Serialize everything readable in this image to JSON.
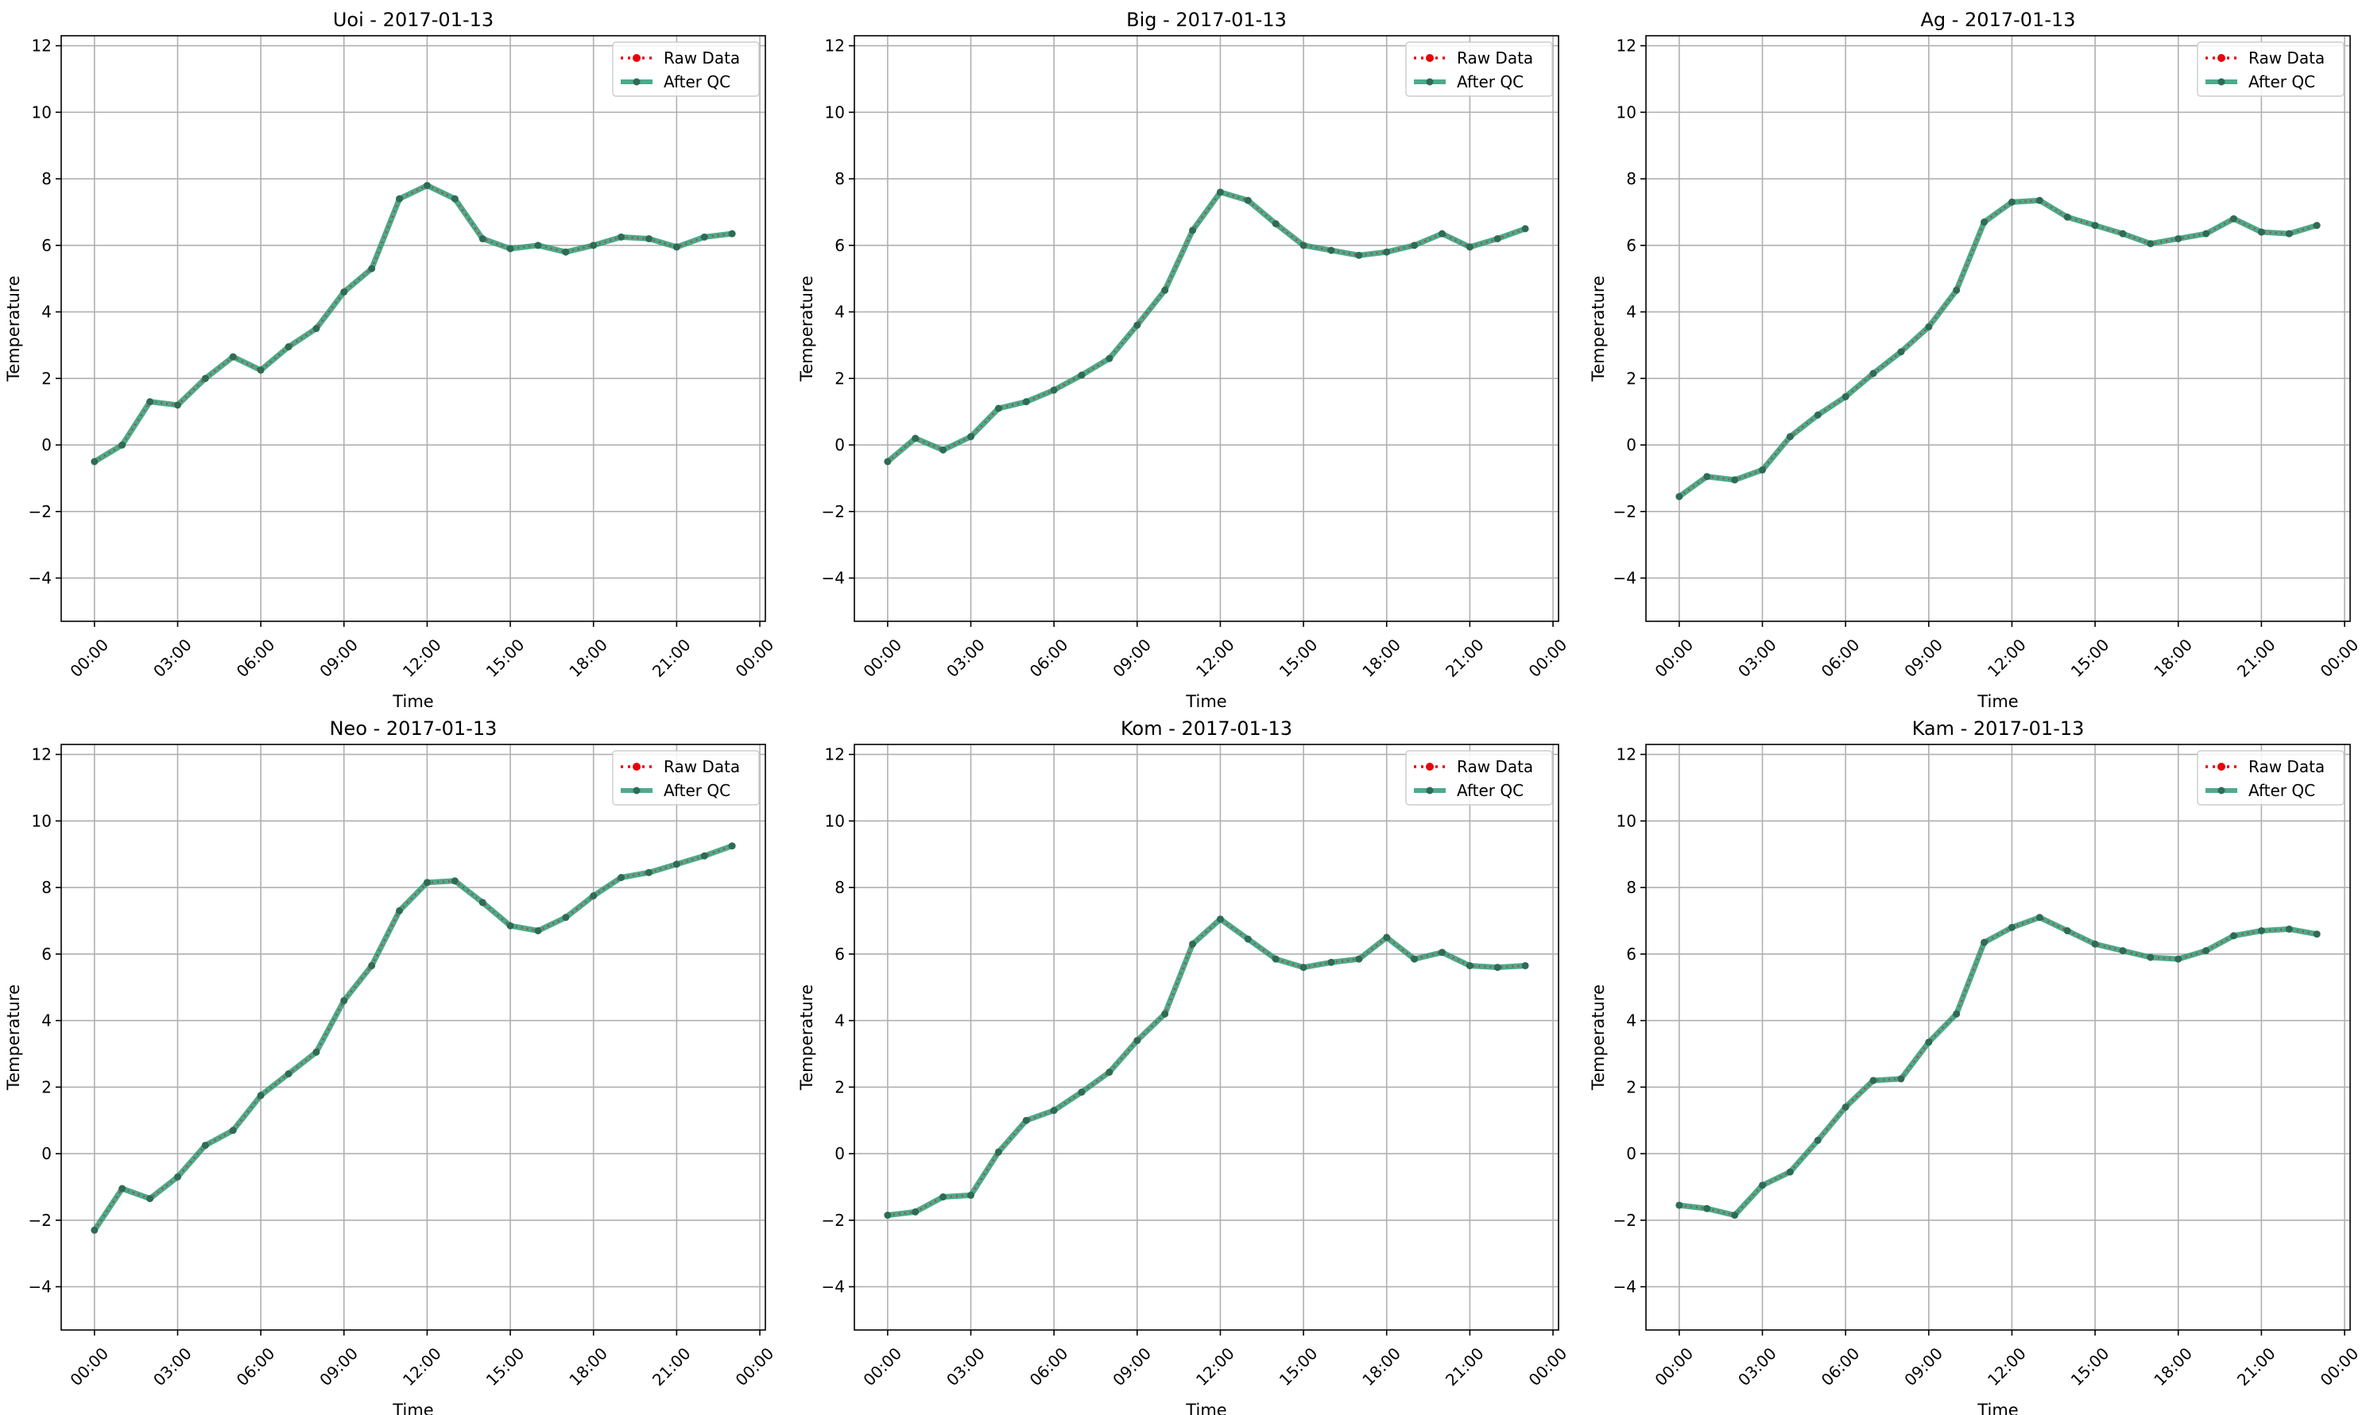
{
  "figure": {
    "background": "#ffffff"
  },
  "style": {
    "raw_color": "#e8000b",
    "qc_color": "#2e9b76",
    "qc_marker_color": "#2f6b55",
    "grid_color": "#b0b0b0"
  },
  "chart_data": [
    {
      "type": "line",
      "title": "Uoi - 2017-01-13",
      "xlabel": "Time",
      "ylabel": "Temperature",
      "x_ticks": [
        "00:00",
        "03:00",
        "06:00",
        "09:00",
        "12:00",
        "15:00",
        "18:00",
        "21:00",
        "00:00"
      ],
      "x_tick_hours": [
        0,
        3,
        6,
        9,
        12,
        15,
        18,
        21,
        24
      ],
      "y_ticks": [
        -4,
        -2,
        0,
        2,
        4,
        6,
        8,
        10,
        12
      ],
      "xlim": [
        -1.2,
        24.2
      ],
      "ylim": [
        -5.3,
        12.3
      ],
      "grid": true,
      "legend_position": "top-right",
      "x_hours": [
        0,
        1,
        2,
        3,
        4,
        5,
        6,
        7,
        8,
        9,
        10,
        11,
        12,
        13,
        14,
        15,
        16,
        17,
        18,
        19,
        20,
        21,
        22,
        23
      ],
      "series": [
        {
          "name": "Raw Data",
          "style": "dotted",
          "values": [
            -0.5,
            0.0,
            1.3,
            1.2,
            2.0,
            2.65,
            2.25,
            2.95,
            3.5,
            4.6,
            5.3,
            7.4,
            7.8,
            7.4,
            6.2,
            5.9,
            6.0,
            5.8,
            6.0,
            6.25,
            6.2,
            5.95,
            6.25,
            6.35
          ]
        },
        {
          "name": "After QC",
          "style": "solid",
          "values": [
            -0.5,
            0.0,
            1.3,
            1.2,
            2.0,
            2.65,
            2.25,
            2.95,
            3.5,
            4.6,
            5.3,
            7.4,
            7.8,
            7.4,
            6.2,
            5.9,
            6.0,
            5.8,
            6.0,
            6.25,
            6.2,
            5.95,
            6.25,
            6.35
          ]
        }
      ]
    },
    {
      "type": "line",
      "title": "Big - 2017-01-13",
      "xlabel": "Time",
      "ylabel": "Temperature",
      "x_ticks": [
        "00:00",
        "03:00",
        "06:00",
        "09:00",
        "12:00",
        "15:00",
        "18:00",
        "21:00",
        "00:00"
      ],
      "x_tick_hours": [
        0,
        3,
        6,
        9,
        12,
        15,
        18,
        21,
        24
      ],
      "y_ticks": [
        -4,
        -2,
        0,
        2,
        4,
        6,
        8,
        10,
        12
      ],
      "xlim": [
        -1.2,
        24.2
      ],
      "ylim": [
        -5.3,
        12.3
      ],
      "grid": true,
      "legend_position": "top-right",
      "x_hours": [
        0,
        1,
        2,
        3,
        4,
        5,
        6,
        7,
        8,
        9,
        10,
        11,
        12,
        13,
        14,
        15,
        16,
        17,
        18,
        19,
        20,
        21,
        22,
        23
      ],
      "series": [
        {
          "name": "Raw Data",
          "style": "dotted",
          "values": [
            -0.5,
            0.2,
            -0.15,
            0.25,
            1.1,
            1.3,
            1.65,
            2.1,
            2.6,
            3.6,
            4.65,
            6.45,
            7.6,
            7.35,
            6.65,
            6.0,
            5.85,
            5.7,
            5.8,
            6.0,
            6.35,
            5.95,
            6.2,
            6.5
          ]
        },
        {
          "name": "After QC",
          "style": "solid",
          "values": [
            -0.5,
            0.2,
            -0.15,
            0.25,
            1.1,
            1.3,
            1.65,
            2.1,
            2.6,
            3.6,
            4.65,
            6.45,
            7.6,
            7.35,
            6.65,
            6.0,
            5.85,
            5.7,
            5.8,
            6.0,
            6.35,
            5.95,
            6.2,
            6.5
          ]
        }
      ]
    },
    {
      "type": "line",
      "title": "Ag - 2017-01-13",
      "xlabel": "Time",
      "ylabel": "Temperature",
      "x_ticks": [
        "00:00",
        "03:00",
        "06:00",
        "09:00",
        "12:00",
        "15:00",
        "18:00",
        "21:00",
        "00:00"
      ],
      "x_tick_hours": [
        0,
        3,
        6,
        9,
        12,
        15,
        18,
        21,
        24
      ],
      "y_ticks": [
        -4,
        -2,
        0,
        2,
        4,
        6,
        8,
        10,
        12
      ],
      "xlim": [
        -1.2,
        24.2
      ],
      "ylim": [
        -5.3,
        12.3
      ],
      "grid": true,
      "legend_position": "top-right",
      "x_hours": [
        0,
        1,
        2,
        3,
        4,
        5,
        6,
        7,
        8,
        9,
        10,
        11,
        12,
        13,
        14,
        15,
        16,
        17,
        18,
        19,
        20,
        21,
        22,
        23
      ],
      "series": [
        {
          "name": "Raw Data",
          "style": "dotted",
          "values": [
            -1.55,
            -0.95,
            -1.05,
            -0.75,
            0.25,
            0.9,
            1.45,
            2.15,
            2.8,
            3.55,
            4.65,
            6.7,
            7.3,
            7.35,
            6.85,
            6.6,
            6.35,
            6.05,
            6.2,
            6.35,
            6.8,
            6.4,
            6.35,
            6.6
          ]
        },
        {
          "name": "After QC",
          "style": "solid",
          "values": [
            -1.55,
            -0.95,
            -1.05,
            -0.75,
            0.25,
            0.9,
            1.45,
            2.15,
            2.8,
            3.55,
            4.65,
            6.7,
            7.3,
            7.35,
            6.85,
            6.6,
            6.35,
            6.05,
            6.2,
            6.35,
            6.8,
            6.4,
            6.35,
            6.6
          ]
        }
      ]
    },
    {
      "type": "line",
      "title": "Neo - 2017-01-13",
      "xlabel": "Time",
      "ylabel": "Temperature",
      "x_ticks": [
        "00:00",
        "03:00",
        "06:00",
        "09:00",
        "12:00",
        "15:00",
        "18:00",
        "21:00",
        "00:00"
      ],
      "x_tick_hours": [
        0,
        3,
        6,
        9,
        12,
        15,
        18,
        21,
        24
      ],
      "y_ticks": [
        -4,
        -2,
        0,
        2,
        4,
        6,
        8,
        10,
        12
      ],
      "xlim": [
        -1.2,
        24.2
      ],
      "ylim": [
        -5.3,
        12.3
      ],
      "grid": true,
      "legend_position": "top-right",
      "x_hours": [
        0,
        1,
        2,
        3,
        4,
        5,
        6,
        7,
        8,
        9,
        10,
        11,
        12,
        13,
        14,
        15,
        16,
        17,
        18,
        19,
        20,
        21,
        22,
        23
      ],
      "series": [
        {
          "name": "Raw Data",
          "style": "dotted",
          "values": [
            -2.3,
            -1.05,
            -1.35,
            -0.7,
            0.25,
            0.7,
            1.75,
            2.4,
            3.05,
            4.6,
            5.65,
            7.3,
            8.15,
            8.2,
            7.55,
            6.85,
            6.7,
            7.1,
            7.75,
            8.3,
            8.45,
            8.7,
            8.95,
            9.25
          ]
        },
        {
          "name": "After QC",
          "style": "solid",
          "values": [
            -2.3,
            -1.05,
            -1.35,
            -0.7,
            0.25,
            0.7,
            1.75,
            2.4,
            3.05,
            4.6,
            5.65,
            7.3,
            8.15,
            8.2,
            7.55,
            6.85,
            6.7,
            7.1,
            7.75,
            8.3,
            8.45,
            8.7,
            8.95,
            9.25
          ]
        }
      ]
    },
    {
      "type": "line",
      "title": "Kom - 2017-01-13",
      "xlabel": "Time",
      "ylabel": "Temperature",
      "x_ticks": [
        "00:00",
        "03:00",
        "06:00",
        "09:00",
        "12:00",
        "15:00",
        "18:00",
        "21:00",
        "00:00"
      ],
      "x_tick_hours": [
        0,
        3,
        6,
        9,
        12,
        15,
        18,
        21,
        24
      ],
      "y_ticks": [
        -4,
        -2,
        0,
        2,
        4,
        6,
        8,
        10,
        12
      ],
      "xlim": [
        -1.2,
        24.2
      ],
      "ylim": [
        -5.3,
        12.3
      ],
      "grid": true,
      "legend_position": "top-right",
      "x_hours": [
        0,
        1,
        2,
        3,
        4,
        5,
        6,
        7,
        8,
        9,
        10,
        11,
        12,
        13,
        14,
        15,
        16,
        17,
        18,
        19,
        20,
        21,
        22,
        23
      ],
      "series": [
        {
          "name": "Raw Data",
          "style": "dotted",
          "values": [
            -1.85,
            -1.75,
            -1.3,
            -1.25,
            0.05,
            1.0,
            1.3,
            1.85,
            2.45,
            3.4,
            4.2,
            6.3,
            7.05,
            6.45,
            5.85,
            5.6,
            5.75,
            5.85,
            6.5,
            5.85,
            6.05,
            5.65,
            5.6,
            5.65
          ]
        },
        {
          "name": "After QC",
          "style": "solid",
          "values": [
            -1.85,
            -1.75,
            -1.3,
            -1.25,
            0.05,
            1.0,
            1.3,
            1.85,
            2.45,
            3.4,
            4.2,
            6.3,
            7.05,
            6.45,
            5.85,
            5.6,
            5.75,
            5.85,
            6.5,
            5.85,
            6.05,
            5.65,
            5.6,
            5.65
          ]
        }
      ]
    },
    {
      "type": "line",
      "title": "Kam - 2017-01-13",
      "xlabel": "Time",
      "ylabel": "Temperature",
      "x_ticks": [
        "00:00",
        "03:00",
        "06:00",
        "09:00",
        "12:00",
        "15:00",
        "18:00",
        "21:00",
        "00:00"
      ],
      "x_tick_hours": [
        0,
        3,
        6,
        9,
        12,
        15,
        18,
        21,
        24
      ],
      "y_ticks": [
        -4,
        -2,
        0,
        2,
        4,
        6,
        8,
        10,
        12
      ],
      "xlim": [
        -1.2,
        24.2
      ],
      "ylim": [
        -5.3,
        12.3
      ],
      "grid": true,
      "legend_position": "top-right",
      "x_hours": [
        0,
        1,
        2,
        3,
        4,
        5,
        6,
        7,
        8,
        9,
        10,
        11,
        12,
        13,
        14,
        15,
        16,
        17,
        18,
        19,
        20,
        21,
        22,
        23
      ],
      "series": [
        {
          "name": "Raw Data",
          "style": "dotted",
          "values": [
            -1.55,
            -1.65,
            -1.85,
            -0.95,
            -0.55,
            0.4,
            1.4,
            2.2,
            2.25,
            3.35,
            4.2,
            6.35,
            6.8,
            7.1,
            6.7,
            6.3,
            6.1,
            5.9,
            5.85,
            6.1,
            6.55,
            6.7,
            6.75,
            6.6
          ]
        },
        {
          "name": "After QC",
          "style": "solid",
          "values": [
            -1.55,
            -1.65,
            -1.85,
            -0.95,
            -0.55,
            0.4,
            1.4,
            2.2,
            2.25,
            3.35,
            4.2,
            6.35,
            6.8,
            7.1,
            6.7,
            6.3,
            6.1,
            5.9,
            5.85,
            6.1,
            6.55,
            6.7,
            6.75,
            6.6
          ]
        }
      ]
    }
  ]
}
